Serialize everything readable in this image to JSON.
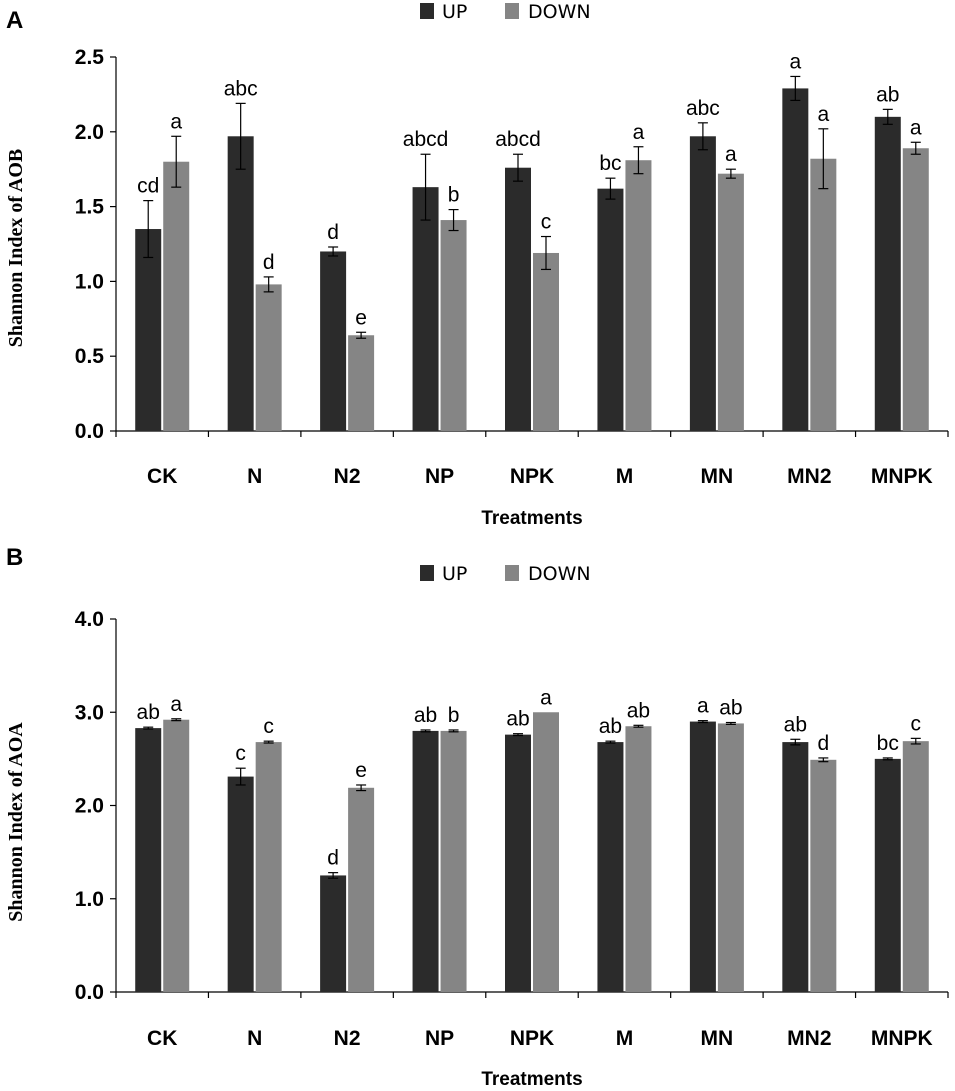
{
  "colors": {
    "up": "#2b2b2b",
    "down": "#858585"
  },
  "chart_data": [
    {
      "type": "bar",
      "panel": "A",
      "legend": [
        "UP",
        "DOWN"
      ],
      "categories": [
        "CK",
        "N",
        "N2",
        "NP",
        "NPK",
        "M",
        "MN",
        "MN2",
        "MNPK"
      ],
      "series": [
        {
          "name": "UP",
          "values": [
            1.35,
            1.97,
            1.2,
            1.63,
            1.76,
            1.62,
            1.97,
            2.29,
            2.1
          ],
          "errors": [
            0.19,
            0.22,
            0.03,
            0.22,
            0.09,
            0.07,
            0.09,
            0.08,
            0.05
          ],
          "labels": [
            "cd",
            "abc",
            "d",
            "abcd",
            "abcd",
            "bc",
            "abc",
            "a",
            "ab"
          ]
        },
        {
          "name": "DOWN",
          "values": [
            1.8,
            0.98,
            0.64,
            1.41,
            1.19,
            1.81,
            1.72,
            1.82,
            1.89
          ],
          "errors": [
            0.17,
            0.05,
            0.02,
            0.07,
            0.11,
            0.09,
            0.03,
            0.2,
            0.04
          ],
          "labels": [
            "a",
            "d",
            "e",
            "b",
            "c",
            "a",
            "a",
            "a",
            "a"
          ]
        }
      ],
      "ylabel": "Shannon Index of AOB",
      "xlabel": "Treatments",
      "ylim": [
        0.0,
        2.5
      ],
      "yticks": [
        "0.0",
        "0.5",
        "1.0",
        "1.5",
        "2.0",
        "2.5"
      ]
    },
    {
      "type": "bar",
      "panel": "B",
      "legend": [
        "UP",
        "DOWN"
      ],
      "categories": [
        "CK",
        "N",
        "N2",
        "NP",
        "NPK",
        "M",
        "MN",
        "MN2",
        "MNPK"
      ],
      "series": [
        {
          "name": "UP",
          "values": [
            2.83,
            2.31,
            1.25,
            2.8,
            2.76,
            2.68,
            2.9,
            2.68,
            2.5
          ],
          "errors": [
            0.01,
            0.09,
            0.03,
            0.01,
            0.01,
            0.01,
            0.01,
            0.03,
            0.01
          ],
          "labels": [
            "ab",
            "c",
            "d",
            "ab",
            "ab",
            "ab",
            "a",
            "ab",
            "bc"
          ]
        },
        {
          "name": "DOWN",
          "values": [
            2.92,
            2.68,
            2.19,
            2.8,
            3.0,
            2.85,
            2.88,
            2.49,
            2.69
          ],
          "errors": [
            0.01,
            0.01,
            0.03,
            0.01,
            0.0,
            0.01,
            0.01,
            0.02,
            0.03
          ],
          "labels": [
            "a",
            "c",
            "e",
            "b",
            "a",
            "ab",
            "ab",
            "d",
            "c"
          ]
        }
      ],
      "ylabel": "Shannon Index of AOA",
      "xlabel": "Treatments",
      "ylim": [
        0.0,
        4.0
      ],
      "yticks": [
        "0.0",
        "1.0",
        "2.0",
        "3.0",
        "4.0"
      ]
    }
  ]
}
